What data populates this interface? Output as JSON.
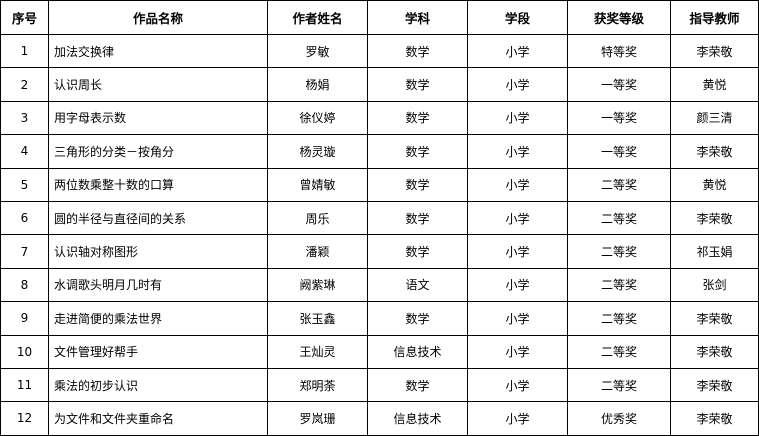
{
  "table": {
    "headers": [
      "序号",
      "作品名称",
      "作者姓名",
      "学科",
      "学段",
      "获奖等级",
      "指导教师"
    ],
    "rows": [
      [
        "1",
        "加法交换律",
        "罗敏",
        "数学",
        "小学",
        "特等奖",
        "李荣敬"
      ],
      [
        "2",
        "认识周长",
        "杨娟",
        "数学",
        "小学",
        "一等奖",
        "黄悦"
      ],
      [
        "3",
        "用字母表示数",
        "徐仪婷",
        "数学",
        "小学",
        "一等奖",
        "颜三清"
      ],
      [
        "4",
        "三角形的分类－按角分",
        "杨灵璇",
        "数学",
        "小学",
        "一等奖",
        "李荣敬"
      ],
      [
        "5",
        "两位数乘整十数的口算",
        "曾婧敏",
        "数学",
        "小学",
        "二等奖",
        "黄悦"
      ],
      [
        "6",
        "圆的半径与直径间的关系",
        "周乐",
        "数学",
        "小学",
        "二等奖",
        "李荣敬"
      ],
      [
        "7",
        "认识轴对称图形",
        "潘颖",
        "数学",
        "小学",
        "二等奖",
        "祁玉娟"
      ],
      [
        "8",
        "水调歌头明月几时有",
        "阙紫琳",
        "语文",
        "小学",
        "二等奖",
        "张剑"
      ],
      [
        "9",
        "走进简便的乘法世界",
        "张玉鑫",
        "数学",
        "小学",
        "二等奖",
        "李荣敬"
      ],
      [
        "10",
        "文件管理好帮手",
        "王灿灵",
        "信息技术",
        "小学",
        "二等奖",
        "李荣敬"
      ],
      [
        "11",
        "乘法的初步认识",
        "郑明荼",
        "数学",
        "小学",
        "二等奖",
        "李荣敬"
      ],
      [
        "12",
        "为文件和文件夹重命名",
        "罗岚珊",
        "信息技术",
        "小学",
        "优秀奖",
        "李荣敬"
      ]
    ]
  }
}
